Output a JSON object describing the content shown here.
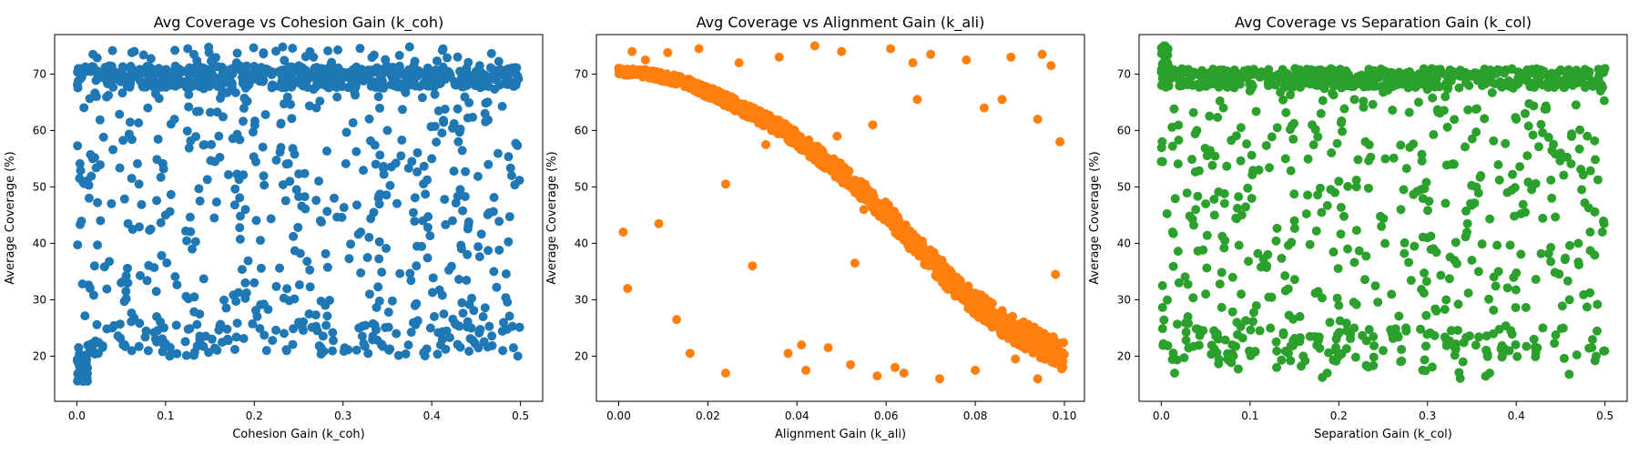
{
  "chart_data": [
    {
      "type": "scatter",
      "title": "Avg Coverage vs Cohesion Gain (k_coh)",
      "xlabel": "Cohesion Gain (k_coh)",
      "ylabel": "Average Coverage (%)",
      "xlim": [
        -0.025,
        0.525
      ],
      "ylim": [
        12.0,
        77.0
      ],
      "xticks": [
        0.0,
        0.1,
        0.2,
        0.3,
        0.4,
        0.5
      ],
      "xtick_labels": [
        "0.0",
        "0.1",
        "0.2",
        "0.3",
        "0.4",
        "0.5"
      ],
      "yticks": [
        20,
        30,
        40,
        50,
        60,
        70
      ],
      "ytick_labels": [
        "20",
        "30",
        "40",
        "50",
        "60",
        "70"
      ],
      "color": "#1f77b4",
      "grid": false,
      "pattern": "Dense band at 68–71% coverage across all k_coh, broad scatter between 20% and 70%, small cluster near 15–20% at k_coh ≈ 0.",
      "points": [
        [
          0.002,
          16.0
        ],
        [
          0.004,
          17.5
        ],
        [
          0.006,
          18.8
        ],
        [
          0.008,
          15.6
        ],
        [
          0.01,
          16.8
        ],
        [
          0.012,
          17.9
        ],
        [
          0.003,
          20.2
        ],
        [
          0.009,
          19.3
        ],
        [
          0.015,
          21.0
        ],
        [
          0.02,
          36.0
        ],
        [
          0.018,
          55.0
        ],
        [
          0.03,
          70.0
        ],
        [
          0.04,
          25.0
        ],
        [
          0.06,
          68.5
        ],
        [
          0.08,
          64.0
        ],
        [
          0.1,
          45.0
        ],
        [
          0.12,
          70.5
        ],
        [
          0.14,
          22.0
        ],
        [
          0.16,
          59.0
        ],
        [
          0.18,
          72.0
        ],
        [
          0.2,
          33.0
        ],
        [
          0.22,
          68.0
        ],
        [
          0.24,
          51.0
        ],
        [
          0.26,
          69.0
        ],
        [
          0.28,
          29.0
        ],
        [
          0.3,
          70.0
        ],
        [
          0.32,
          42.0
        ],
        [
          0.34,
          66.0
        ],
        [
          0.36,
          24.0
        ],
        [
          0.38,
          71.5
        ],
        [
          0.4,
          55.0
        ],
        [
          0.42,
          69.5
        ],
        [
          0.44,
          38.0
        ],
        [
          0.46,
          63.0
        ],
        [
          0.48,
          21.0
        ],
        [
          0.495,
          70.0
        ],
        [
          0.497,
          20.0
        ],
        [
          0.05,
          33.0
        ],
        [
          0.07,
          50.5
        ],
        [
          0.09,
          27.0
        ],
        [
          0.11,
          62.0
        ],
        [
          0.13,
          39.0
        ],
        [
          0.15,
          68.0
        ],
        [
          0.17,
          23.0
        ],
        [
          0.19,
          46.0
        ],
        [
          0.21,
          70.0
        ],
        [
          0.23,
          57.0
        ],
        [
          0.25,
          26.0
        ],
        [
          0.27,
          64.0
        ],
        [
          0.29,
          48.0
        ],
        [
          0.31,
          69.0
        ],
        [
          0.33,
          31.0
        ],
        [
          0.35,
          60.0
        ],
        [
          0.37,
          67.0
        ],
        [
          0.39,
          44.0
        ],
        [
          0.41,
          22.0
        ],
        [
          0.43,
          58.0
        ],
        [
          0.45,
          70.5
        ],
        [
          0.47,
          35.0
        ],
        [
          0.49,
          52.0
        ],
        [
          0.125,
          74.5
        ],
        [
          0.232,
          74.8
        ],
        [
          0.412,
          74.2
        ],
        [
          0.062,
          73.8
        ]
      ],
      "band_points": [
        [
          0.0,
          68.5
        ],
        [
          0.5,
          70.0
        ],
        [
          0.25,
          69.5
        ],
        [
          0.375,
          70.5
        ],
        [
          0.125,
          69.0
        ]
      ]
    },
    {
      "type": "scatter",
      "title": "Avg Coverage vs Alignment Gain (k_ali)",
      "xlabel": "Alignment Gain (k_ali)",
      "ylabel": "Average Coverage (%)",
      "xlim": [
        -0.005,
        0.1045
      ],
      "ylim": [
        12.0,
        77.0
      ],
      "xticks": [
        0.0,
        0.02,
        0.04,
        0.06,
        0.08,
        0.1
      ],
      "xtick_labels": [
        "0.00",
        "0.02",
        "0.04",
        "0.06",
        "0.08",
        "0.10"
      ],
      "yticks": [
        20,
        30,
        40,
        50,
        60,
        70
      ],
      "ytick_labels": [
        "20",
        "30",
        "40",
        "50",
        "60",
        "70"
      ],
      "color": "#ff7f0e",
      "grid": false,
      "pattern": "Coverage declines sigmoidally from ~70% at k_ali=0 to ~20% at k_ali=0.10; sparse outliers near 72–75% and 16–22%.",
      "trend": [
        [
          0.0,
          70.5
        ],
        [
          0.005,
          70.2
        ],
        [
          0.01,
          69.5
        ],
        [
          0.015,
          68.5
        ],
        [
          0.02,
          66.8
        ],
        [
          0.025,
          65.0
        ],
        [
          0.03,
          63.0
        ],
        [
          0.035,
          61.0
        ],
        [
          0.04,
          58.5
        ],
        [
          0.045,
          55.5
        ],
        [
          0.05,
          52.5
        ],
        [
          0.055,
          49.0
        ],
        [
          0.06,
          45.5
        ],
        [
          0.065,
          41.0
        ],
        [
          0.07,
          37.0
        ],
        [
          0.075,
          33.0
        ],
        [
          0.08,
          29.5
        ],
        [
          0.085,
          26.5
        ],
        [
          0.09,
          24.0
        ],
        [
          0.095,
          22.0
        ],
        [
          0.1,
          20.0
        ]
      ],
      "outliers": [
        [
          0.001,
          42.0
        ],
        [
          0.002,
          32.0
        ],
        [
          0.009,
          43.5
        ],
        [
          0.013,
          26.5
        ],
        [
          0.016,
          20.5
        ],
        [
          0.024,
          17.0
        ],
        [
          0.024,
          50.5
        ],
        [
          0.03,
          36.0
        ],
        [
          0.038,
          20.5
        ],
        [
          0.041,
          22.0
        ],
        [
          0.042,
          17.5
        ],
        [
          0.047,
          21.5
        ],
        [
          0.052,
          18.5
        ],
        [
          0.053,
          36.5
        ],
        [
          0.055,
          46.0
        ],
        [
          0.058,
          16.5
        ],
        [
          0.062,
          18.0
        ],
        [
          0.064,
          17.0
        ],
        [
          0.072,
          16.0
        ],
        [
          0.08,
          17.5
        ],
        [
          0.089,
          19.5
        ],
        [
          0.094,
          16.0
        ],
        [
          0.098,
          34.5
        ],
        [
          0.099,
          58.0
        ],
        [
          0.003,
          74.0
        ],
        [
          0.006,
          72.5
        ],
        [
          0.011,
          73.8
        ],
        [
          0.018,
          74.5
        ],
        [
          0.027,
          72.0
        ],
        [
          0.036,
          73.0
        ],
        [
          0.044,
          75.0
        ],
        [
          0.05,
          74.0
        ],
        [
          0.061,
          74.5
        ],
        [
          0.066,
          72.0
        ],
        [
          0.07,
          73.5
        ],
        [
          0.078,
          72.5
        ],
        [
          0.088,
          73.0
        ],
        [
          0.095,
          73.5
        ],
        [
          0.097,
          71.5
        ],
        [
          0.094,
          62.0
        ],
        [
          0.067,
          65.5
        ],
        [
          0.082,
          64.0
        ],
        [
          0.086,
          65.5
        ],
        [
          0.057,
          61.0
        ],
        [
          0.049,
          59.0
        ],
        [
          0.033,
          57.5
        ]
      ]
    },
    {
      "type": "scatter",
      "title": "Avg Coverage vs Separation Gain (k_col)",
      "xlabel": "Separation Gain (k_col)",
      "ylabel": "Average Coverage (%)",
      "xlim": [
        -0.025,
        0.525
      ],
      "ylim": [
        12.0,
        77.0
      ],
      "xticks": [
        0.0,
        0.1,
        0.2,
        0.3,
        0.4,
        0.5
      ],
      "xtick_labels": [
        "0.0",
        "0.1",
        "0.2",
        "0.3",
        "0.4",
        "0.5"
      ],
      "yticks": [
        20,
        30,
        40,
        50,
        60,
        70
      ],
      "ytick_labels": [
        "20",
        "30",
        "40",
        "50",
        "60",
        "70"
      ],
      "color": "#2ca02c",
      "grid": false,
      "pattern": "Dense band at 68–71% across all k_col, broad scatter 16–70%; spike of points near 72–75% at k_col ≈ 0.",
      "points": [
        [
          0.001,
          74.5
        ],
        [
          0.003,
          75.0
        ],
        [
          0.005,
          73.5
        ],
        [
          0.007,
          72.0
        ],
        [
          0.002,
          71.0
        ],
        [
          0.004,
          69.5
        ],
        [
          0.0,
          54.5
        ],
        [
          0.001,
          58.0
        ],
        [
          0.015,
          17.0
        ],
        [
          0.02,
          33.0
        ],
        [
          0.04,
          60.0
        ],
        [
          0.06,
          45.0
        ],
        [
          0.08,
          22.0
        ],
        [
          0.1,
          67.0
        ],
        [
          0.12,
          38.0
        ],
        [
          0.14,
          55.0
        ],
        [
          0.16,
          20.0
        ],
        [
          0.18,
          63.0
        ],
        [
          0.2,
          29.0
        ],
        [
          0.22,
          50.0
        ],
        [
          0.24,
          68.5
        ],
        [
          0.26,
          24.0
        ],
        [
          0.28,
          57.0
        ],
        [
          0.3,
          41.0
        ],
        [
          0.32,
          66.0
        ],
        [
          0.34,
          19.0
        ],
        [
          0.36,
          52.0
        ],
        [
          0.38,
          35.0
        ],
        [
          0.4,
          62.0
        ],
        [
          0.42,
          23.0
        ],
        [
          0.44,
          48.0
        ],
        [
          0.46,
          30.0
        ],
        [
          0.48,
          59.0
        ],
        [
          0.497,
          42.0
        ],
        [
          0.5,
          71.0
        ],
        [
          0.03,
          27.0
        ],
        [
          0.05,
          47.0
        ],
        [
          0.07,
          64.0
        ],
        [
          0.09,
          31.0
        ],
        [
          0.11,
          53.0
        ],
        [
          0.13,
          18.0
        ],
        [
          0.15,
          44.0
        ],
        [
          0.17,
          61.0
        ],
        [
          0.19,
          26.0
        ],
        [
          0.21,
          39.0
        ],
        [
          0.23,
          58.0
        ],
        [
          0.25,
          21.0
        ],
        [
          0.27,
          46.0
        ],
        [
          0.29,
          65.0
        ],
        [
          0.31,
          28.0
        ],
        [
          0.33,
          54.0
        ],
        [
          0.35,
          37.0
        ],
        [
          0.37,
          17.0
        ],
        [
          0.39,
          49.0
        ],
        [
          0.41,
          63.0
        ],
        [
          0.43,
          25.0
        ],
        [
          0.45,
          56.0
        ],
        [
          0.47,
          40.0
        ],
        [
          0.49,
          20.0
        ],
        [
          0.495,
          67.0
        ]
      ]
    }
  ]
}
